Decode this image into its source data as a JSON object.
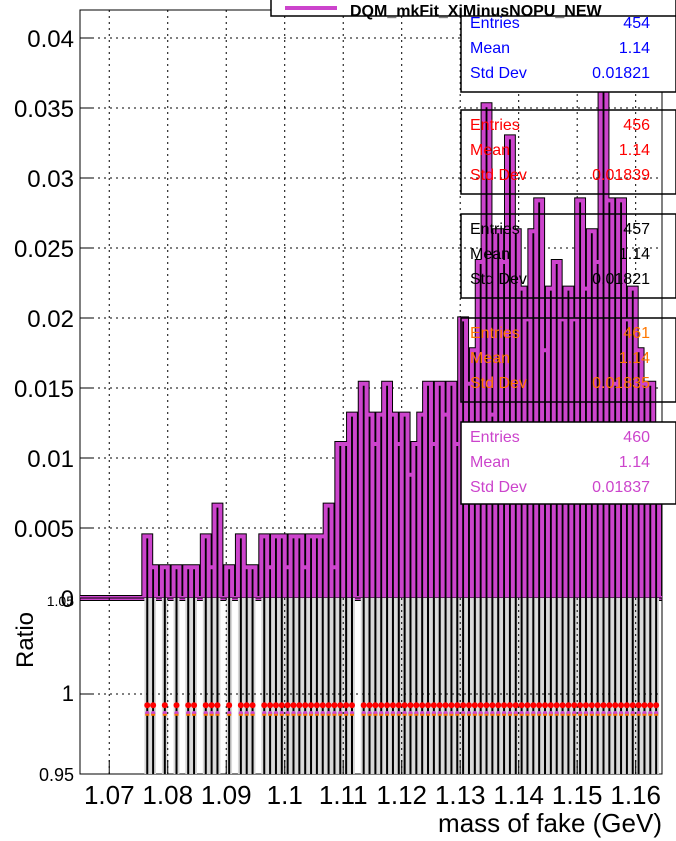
{
  "chart_data": {
    "type": "bar",
    "title": "DQM_mkFit_XiMinusNOPU_NEW",
    "xlabel": "mass of fake (GeV)",
    "ylabel": "",
    "xlim": [
      1.065,
      1.1645
    ],
    "ylim": [
      0,
      0.042
    ],
    "grid": true,
    "x_ticks": [
      "1.07",
      "1.08",
      "1.09",
      "1.1",
      "1.11",
      "1.12",
      "1.13",
      "1.14",
      "1.15",
      "1.16"
    ],
    "y_ticks": [
      "0",
      "0.005",
      "0.01",
      "0.015",
      "0.02",
      "0.025",
      "0.03",
      "0.035",
      "0.04"
    ],
    "bin_width": 0.001,
    "bin_x": [
      1.0765,
      1.0775,
      1.0785,
      1.0795,
      1.0805,
      1.0815,
      1.0825,
      1.0835,
      1.0845,
      1.0855,
      1.0865,
      1.0875,
      1.0885,
      1.0895,
      1.0905,
      1.0915,
      1.0925,
      1.0935,
      1.0945,
      1.0955,
      1.0965,
      1.0975,
      1.0985,
      1.0995,
      1.1005,
      1.1015,
      1.1025,
      1.1035,
      1.1045,
      1.1055,
      1.1065,
      1.1075,
      1.1085,
      1.1095,
      1.1105,
      1.1115,
      1.1125,
      1.1135,
      1.1145,
      1.1155,
      1.1165,
      1.1175,
      1.1185,
      1.1195,
      1.1205,
      1.1215,
      1.1225,
      1.1235,
      1.1245,
      1.1255,
      1.1265,
      1.1275,
      1.1285,
      1.1295,
      1.1305,
      1.1315,
      1.1325,
      1.1335,
      1.1345,
      1.1355,
      1.1365,
      1.1375,
      1.1385,
      1.1395,
      1.1405,
      1.1415,
      1.1425,
      1.1435,
      1.1445,
      1.1455,
      1.1465,
      1.1475,
      1.1485,
      1.1495,
      1.1505,
      1.1515,
      1.1525,
      1.1535,
      1.1545,
      1.1555,
      1.1565,
      1.1575,
      1.1585,
      1.1595,
      1.1605,
      1.1615,
      1.1625,
      1.1635
    ],
    "series": [
      {
        "name": "",
        "color": "#cc44cc",
        "values": [
          0.0044,
          0.0022,
          0,
          0.0022,
          0,
          0.0022,
          0,
          0.0022,
          0.0022,
          0,
          0.0044,
          0.0022,
          0.0066,
          0,
          0.0022,
          0,
          0.0044,
          0.0022,
          0.0022,
          0,
          0.0044,
          0.0022,
          0.0044,
          0.0044,
          0.0022,
          0.0044,
          0.0044,
          0.0022,
          0.0044,
          0.0044,
          0.0044,
          0.0066,
          0.0022,
          0.011,
          0.011,
          0.0131,
          0,
          0.0153,
          0.0131,
          0.011,
          0.0131,
          0.0153,
          0.0131,
          0.011,
          0.0131,
          0.0088,
          0.011,
          0.0131,
          0.0153,
          0.011,
          0.0153,
          0.0131,
          0.0153,
          0.011,
          0.0199,
          0.0153,
          0.0177,
          0.024,
          0.0352,
          0.0131,
          0.0262,
          0.024,
          0.0329,
          0.0262,
          0.0221,
          0.0199,
          0.0262,
          0.0284,
          0.0177,
          0.0221,
          0.024,
          0.0199,
          0.0221,
          0.0199,
          0.0284,
          0.0221,
          0.0262,
          0.024,
          0.0393,
          0.0284,
          0.0153,
          0.0284,
          0.0199,
          0.0221,
          0.0177,
          0.0153,
          0.0153,
          0.011
        ]
      },
      {
        "name": "",
        "color": "#0000ff",
        "values": [],
        "offsets": {}
      },
      {
        "name": "",
        "color": "#ff0000",
        "values": []
      },
      {
        "name": "",
        "color": "#000000",
        "values": []
      },
      {
        "name": "",
        "color": "#ff7700",
        "values": []
      }
    ],
    "stats_boxes": [
      {
        "color": "#0000ff",
        "entries_label": "Entries",
        "entries": "454",
        "mean_label": "Mean",
        "mean": "1.14",
        "std_label": "Std Dev",
        "std": "0.01821"
      },
      {
        "color": "#ff0000",
        "entries_label": "Entries",
        "entries": "456",
        "mean_label": "Mean",
        "mean": "1.14",
        "std_label": "Std Dev",
        "std": "0.01839"
      },
      {
        "color": "#000000",
        "entries_label": "Entries",
        "entries": "457",
        "mean_label": "Mean",
        "mean": "1.14",
        "std_label": "Std Dev",
        "std": "0.01821"
      },
      {
        "color": "#ff7700",
        "entries_label": "Entries",
        "entries": "461",
        "mean_label": "Mean",
        "mean": "1.14",
        "std_label": "Std Dev",
        "std": "0.01835"
      },
      {
        "color": "#cc44cc",
        "entries_label": "Entries",
        "entries": "460",
        "mean_label": "Mean",
        "mean": "1.14",
        "std_label": "Std Dev",
        "std": "0.01837"
      }
    ],
    "ratio": {
      "ylabel": "Ratio",
      "ylim": [
        0.95,
        1.06
      ],
      "y_ticks": [
        "0.95",
        "1"
      ],
      "y_tick_values": [
        0.95,
        1.0
      ],
      "top_tick_label": "1.05",
      "red_level": 0.993,
      "orange_level": 0.987,
      "magenta_level": 0.988
    }
  }
}
